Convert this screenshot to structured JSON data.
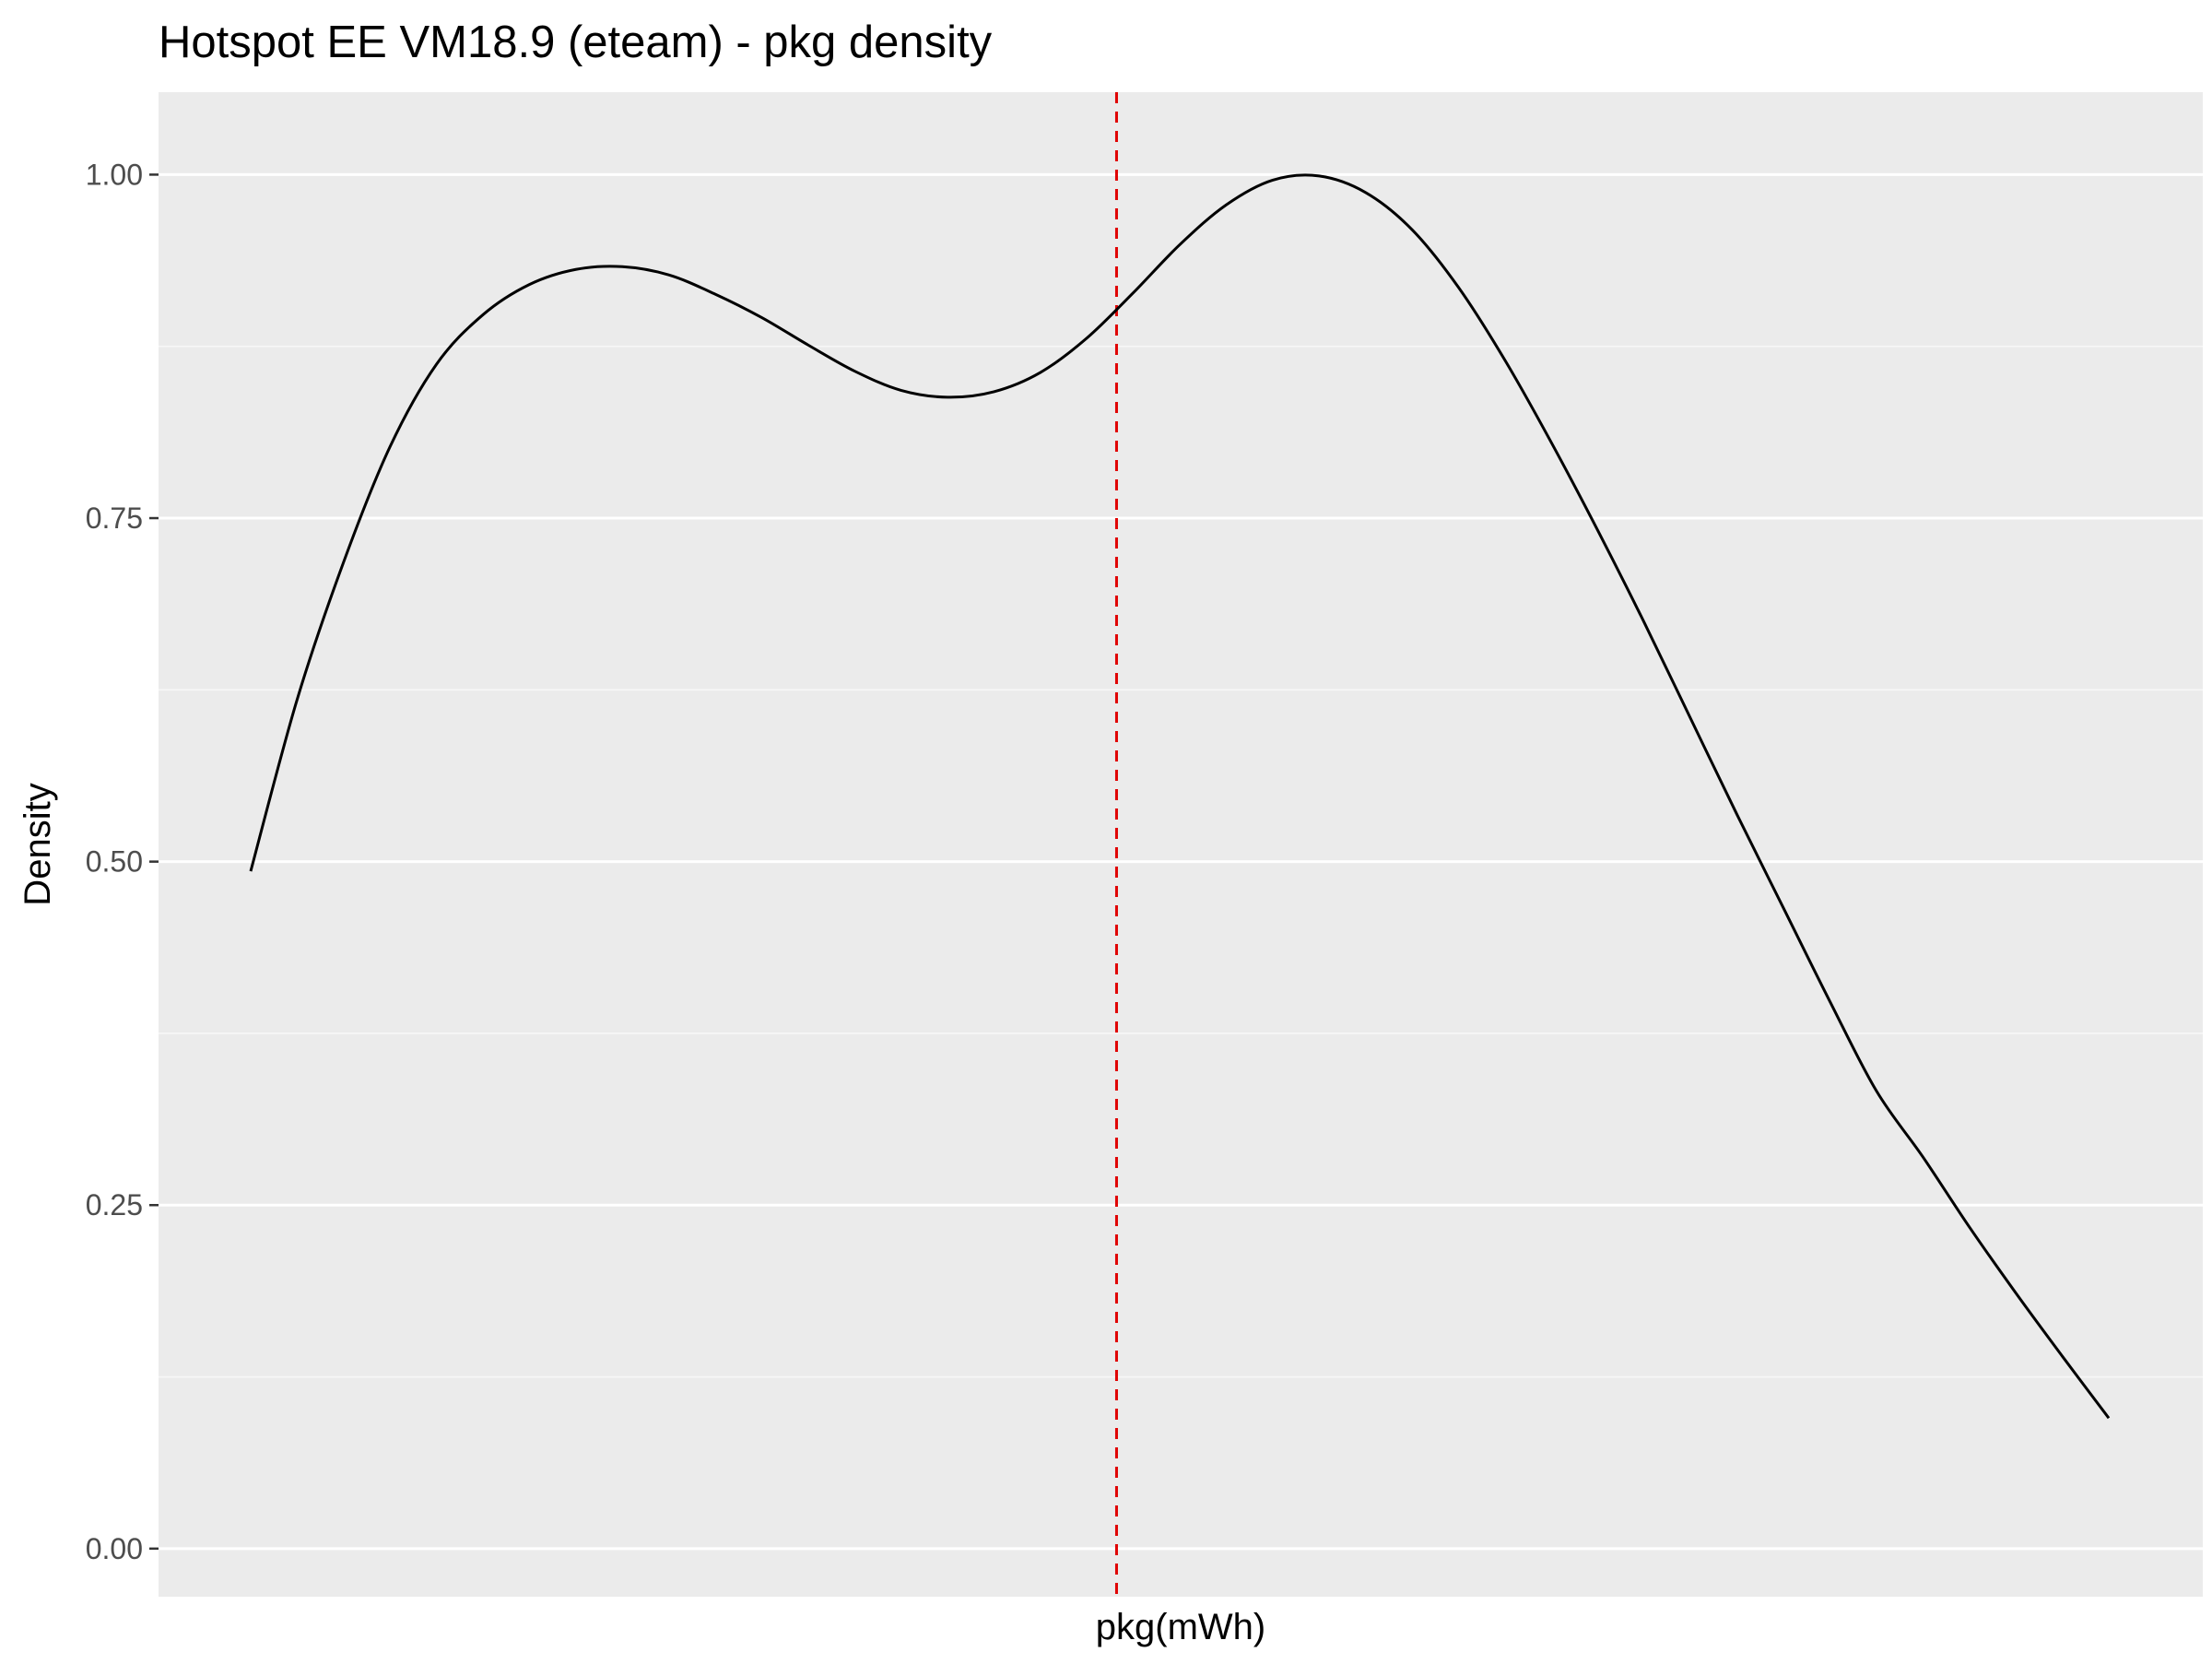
{
  "chart_data": {
    "type": "line",
    "title": "Hotspot EE VM18.9 (eteam) - pkg density",
    "xlabel": "pkg(mWh)",
    "ylabel": "Density",
    "xlim": [
      0,
      1
    ],
    "ylim": [
      -0.035,
      1.06
    ],
    "yticks": [
      0.0,
      0.25,
      0.5,
      0.75,
      1.0
    ],
    "ytick_labels": [
      "0.00",
      "0.25",
      "0.50",
      "0.75",
      "1.00"
    ],
    "x_tick_labels_shown": false,
    "grid": true,
    "legend": "none",
    "colors": {
      "panel_background": "#ebebeb",
      "grid_major": "#ffffff",
      "grid_minor": "#f7f7f7",
      "curve": "#000000",
      "reference_line": "#e00000",
      "tick_mark": "#333333"
    },
    "series": [
      {
        "x": [
          0.0,
          0.025,
          0.05,
          0.075,
          0.1,
          0.125,
          0.15,
          0.175,
          0.2,
          0.225,
          0.25,
          0.275,
          0.3,
          0.325,
          0.35,
          0.375,
          0.4,
          0.425,
          0.45,
          0.475,
          0.5,
          0.525,
          0.55,
          0.575,
          0.6,
          0.625,
          0.65,
          0.675,
          0.7,
          0.725,
          0.75,
          0.775,
          0.8,
          0.825,
          0.85,
          0.875,
          0.9,
          0.925,
          0.95,
          0.975,
          1.0
        ],
        "y": [
          0.493,
          0.618,
          0.718,
          0.802,
          0.862,
          0.898,
          0.92,
          0.931,
          0.933,
          0.927,
          0.913,
          0.896,
          0.876,
          0.857,
          0.843,
          0.838,
          0.842,
          0.856,
          0.881,
          0.914,
          0.949,
          0.978,
          0.996,
          0.999,
          0.987,
          0.96,
          0.918,
          0.865,
          0.805,
          0.741,
          0.674,
          0.604,
          0.534,
          0.466,
          0.398,
          0.333,
          0.285,
          0.234,
          0.186,
          0.14,
          0.095
        ]
      }
    ],
    "reference_lines": [
      {
        "orientation": "vertical",
        "x": 0.466,
        "style": "dashed"
      }
    ]
  }
}
